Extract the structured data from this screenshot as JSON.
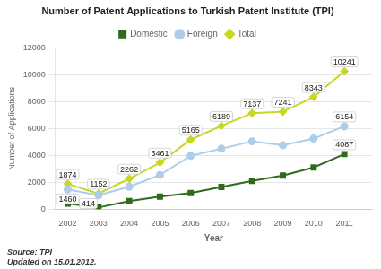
{
  "chart_data": {
    "type": "line",
    "title": "Number of Patent Applications to Turkish Patent Institute (TPI)",
    "xlabel": "Year",
    "ylabel": "Number of Applications",
    "annotations": [
      "Source: TPI",
      "Updated on 15.01.2012."
    ],
    "x": [
      2002,
      2003,
      2004,
      2005,
      2006,
      2007,
      2008,
      2009,
      2010,
      2011
    ],
    "series": [
      {
        "name": "Domestic",
        "color": "#2e6b1a",
        "marker": "square",
        "values": [
          414,
          123,
          598,
          926,
          1200,
          1650,
          2100,
          2500,
          3100,
          4087
        ],
        "value_labels": [
          "414",
          null,
          null,
          null,
          null,
          null,
          null,
          null,
          null,
          "4087"
        ]
      },
      {
        "name": "Foreign",
        "color": "#aecde8",
        "marker": "circle",
        "values": [
          1460,
          1029,
          1664,
          2535,
          3965,
          4489,
          5037,
          4741,
          5243,
          6154
        ],
        "value_labels": [
          "1460",
          null,
          null,
          null,
          null,
          null,
          null,
          null,
          null,
          "6154"
        ]
      },
      {
        "name": "Total",
        "color": "#c8d820",
        "marker": "diamond",
        "values": [
          1874,
          1152,
          2262,
          3461,
          5165,
          6189,
          7137,
          7241,
          8343,
          10241
        ],
        "value_labels": [
          "1874",
          "1152",
          "2262",
          "3461",
          "5165",
          "6189",
          "7137",
          "7241",
          "8343",
          "10241"
        ]
      }
    ],
    "xlim": [
      2001.6,
      2011.9
    ],
    "xticks": [
      2002,
      2003,
      2004,
      2005,
      2006,
      2007,
      2008,
      2009,
      2010,
      2011
    ],
    "ylim": [
      0,
      12000
    ],
    "yticks": [
      0,
      2000,
      4000,
      6000,
      8000,
      10000,
      12000
    ],
    "grid": "y",
    "legend": "top",
    "data_labels": true
  }
}
